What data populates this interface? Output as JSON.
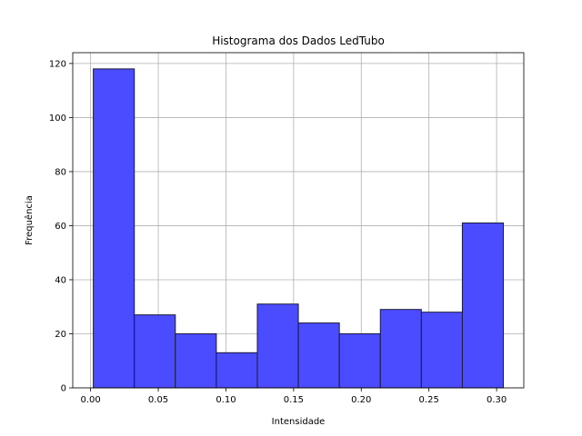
{
  "chart_data": {
    "type": "bar",
    "title": "Histograma dos Dados LedTubo",
    "xlabel": "Intensidade",
    "ylabel": "Frequência",
    "bin_edges": [
      0.002,
      0.0323,
      0.0626,
      0.0929,
      0.1232,
      0.1535,
      0.1838,
      0.2141,
      0.2444,
      0.2747,
      0.305
    ],
    "values": [
      118,
      27,
      20,
      13,
      31,
      24,
      20,
      29,
      28,
      61
    ],
    "xlim": [
      -0.0132,
      0.3201
    ],
    "ylim": [
      0,
      124
    ],
    "xticks": [
      0.0,
      0.05,
      0.1,
      0.15,
      0.2,
      0.25,
      0.3
    ],
    "xtick_labels": [
      "0.00",
      "0.05",
      "0.10",
      "0.15",
      "0.20",
      "0.25",
      "0.30"
    ],
    "yticks": [
      0,
      20,
      40,
      60,
      80,
      100,
      120
    ],
    "ytick_labels": [
      "0",
      "20",
      "40",
      "60",
      "80",
      "100",
      "120"
    ],
    "grid": true,
    "bar_color": "#4b4bff",
    "edge_color": "#1a1a3a",
    "grid_color": "#b0b0b0"
  }
}
